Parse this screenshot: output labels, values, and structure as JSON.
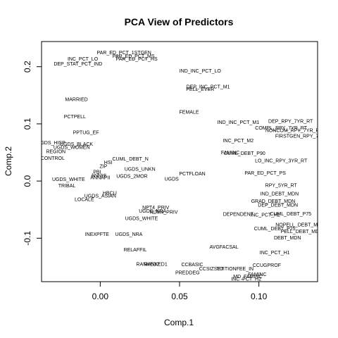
{
  "chart_data": {
    "type": "scatter",
    "title": "PCA View of Predictors",
    "xlabel": "Comp.1",
    "ylabel": "Comp.2",
    "xlim": [
      -0.037,
      0.137
    ],
    "ylim": [
      -0.176,
      0.244
    ],
    "xticks": [
      0.0,
      0.05,
      0.1
    ],
    "xtick_labels": [
      "0.00",
      "0.05",
      "0.10"
    ],
    "yticks": [
      -0.1,
      0.0,
      0.1,
      0.2
    ],
    "ytick_labels": [
      "-0.1",
      "0.0",
      "0.1",
      "0.2"
    ],
    "grid": false,
    "points": [
      {
        "label": "PAR_ED_PCT_1STGEN",
        "x": 0.015,
        "y": 0.225
      },
      {
        "label": "PAR_ED_PCT_MS",
        "x": 0.021,
        "y": 0.219
      },
      {
        "label": "PAR_ED_PCT_HS",
        "x": 0.023,
        "y": 0.214
      },
      {
        "label": "INC_PCT_LO",
        "x": -0.011,
        "y": 0.214
      },
      {
        "label": "DEP_STAT_PCT_IND",
        "x": -0.014,
        "y": 0.205
      },
      {
        "label": "IND_INC_PCT_LO",
        "x": 0.063,
        "y": 0.193
      },
      {
        "label": "DEP_INC_PCT_M1",
        "x": 0.068,
        "y": 0.165
      },
      {
        "label": "PELL_EVER",
        "x": 0.063,
        "y": 0.161
      },
      {
        "label": "MARRIED",
        "x": -0.015,
        "y": 0.143
      },
      {
        "label": "FEMALE",
        "x": 0.056,
        "y": 0.121
      },
      {
        "label": "PCTPELL",
        "x": -0.016,
        "y": 0.113
      },
      {
        "label": "IND_INC_PCT_M1",
        "x": 0.087,
        "y": 0.103
      },
      {
        "label": "DEP_RPY_7YR_RT",
        "x": 0.12,
        "y": 0.105
      },
      {
        "label": "COMPL_RPY_7YR_RT",
        "x": 0.114,
        "y": 0.093
      },
      {
        "label": "NONCOM_RPY_7YR_RT",
        "x": 0.122,
        "y": 0.089
      },
      {
        "label": "PPTUG_EF",
        "x": -0.009,
        "y": 0.085
      },
      {
        "label": "FIRSTGEN_RPY_7YR_RT",
        "x": 0.129,
        "y": 0.079
      },
      {
        "label": "INC_PCT_M2",
        "x": 0.087,
        "y": 0.071
      },
      {
        "label": "UGDS_HISP",
        "x": -0.031,
        "y": 0.067
      },
      {
        "label": "UGDS_BLACK",
        "x": -0.015,
        "y": 0.065
      },
      {
        "label": "UGDS_WOMEN",
        "x": -0.018,
        "y": 0.059
      },
      {
        "label": "REGION",
        "x": -0.028,
        "y": 0.052
      },
      {
        "label": "FAMINC",
        "x": 0.082,
        "y": 0.05
      },
      {
        "label": "CUML_DEBT_P90",
        "x": 0.091,
        "y": 0.049
      },
      {
        "label": "LO_INC_RPY_3YR_RT",
        "x": 0.114,
        "y": 0.036
      },
      {
        "label": "CONTROL",
        "x": -0.03,
        "y": 0.04
      },
      {
        "label": "CUML_DEBT_N",
        "x": 0.019,
        "y": 0.039
      },
      {
        "label": "HSI",
        "x": 0.005,
        "y": 0.033
      },
      {
        "label": "ZIP",
        "x": 0.002,
        "y": 0.026
      },
      {
        "label": "UGDS_UNKN",
        "x": 0.025,
        "y": 0.021
      },
      {
        "label": "PBI",
        "x": -0.002,
        "y": 0.016
      },
      {
        "label": "PCTFLOAN",
        "x": 0.058,
        "y": 0.013
      },
      {
        "label": "PAR_ED_PCT_PS",
        "x": 0.104,
        "y": 0.014
      },
      {
        "label": "ANNHI",
        "x": -0.001,
        "y": 0.01
      },
      {
        "label": "UGDS_2MOR",
        "x": 0.02,
        "y": 0.009
      },
      {
        "label": "UGDS",
        "x": 0.045,
        "y": 0.004
      },
      {
        "label": "UGDS_WHITE",
        "x": -0.02,
        "y": 0.003
      },
      {
        "label": "ANNAPII",
        "x": 0.0,
        "y": 0.006
      },
      {
        "label": "TRIBAL",
        "x": -0.021,
        "y": -0.008
      },
      {
        "label": "RPY_5YR_RT",
        "x": 0.114,
        "y": -0.007
      },
      {
        "label": "IND_DEBT_MDN",
        "x": 0.113,
        "y": -0.022
      },
      {
        "label": "HBCU",
        "x": 0.006,
        "y": -0.021
      },
      {
        "label": "UGDS_ASIAN",
        "x": 0.0,
        "y": -0.026
      },
      {
        "label": "LOCALE",
        "x": -0.01,
        "y": -0.032
      },
      {
        "label": "GRAD_DEBT_MDN",
        "x": 0.109,
        "y": -0.035
      },
      {
        "label": "DEP_DEBT_MDN",
        "x": 0.112,
        "y": -0.042
      },
      {
        "label": "NPT4_PRIV",
        "x": 0.035,
        "y": -0.046
      },
      {
        "label": "UGDS_NRA",
        "x": 0.033,
        "y": -0.052
      },
      {
        "label": "NUM4_PRIV",
        "x": 0.04,
        "y": -0.054
      },
      {
        "label": "DEPENDENT",
        "x": 0.087,
        "y": -0.058
      },
      {
        "label": "INC_PCT_H2",
        "x": 0.104,
        "y": -0.059
      },
      {
        "label": "CUML_DEBT_P75",
        "x": 0.12,
        "y": -0.057
      },
      {
        "label": "UGDS_WHITE",
        "x": 0.026,
        "y": -0.065
      },
      {
        "label": "NOPELL_DEBT_MDN",
        "x": 0.126,
        "y": -0.076
      },
      {
        "label": "CUML_DEBT_P25",
        "x": 0.11,
        "y": -0.083
      },
      {
        "label": "PELL_DEBT_MDN",
        "x": 0.127,
        "y": -0.088
      },
      {
        "label": "INEXPFTE",
        "x": -0.002,
        "y": -0.093
      },
      {
        "label": "UGDS_NRA",
        "x": 0.018,
        "y": -0.093
      },
      {
        "label": "DEBT_MDN",
        "x": 0.118,
        "y": -0.099
      },
      {
        "label": "AVGFACSAL",
        "x": 0.078,
        "y": -0.115
      },
      {
        "label": "RELAFFIL",
        "x": 0.022,
        "y": -0.12
      },
      {
        "label": "INC_PCT_H1",
        "x": 0.11,
        "y": -0.125
      },
      {
        "label": "RANKED1",
        "x": 0.035,
        "y": -0.145
      },
      {
        "label": "RANKED2",
        "x": 0.03,
        "y": -0.145
      },
      {
        "label": "CCBASIC",
        "x": 0.058,
        "y": -0.146
      },
      {
        "label": "CCUGPROF",
        "x": 0.105,
        "y": -0.147
      },
      {
        "label": "CCSIZSET",
        "x": 0.07,
        "y": -0.153
      },
      {
        "label": "TUITIONFEE_IN",
        "x": 0.085,
        "y": -0.153
      },
      {
        "label": "PREDDEG",
        "x": 0.055,
        "y": -0.16
      },
      {
        "label": "FAMINC",
        "x": 0.099,
        "y": -0.163
      },
      {
        "label": "MD_FAMINC",
        "x": 0.093,
        "y": -0.167
      },
      {
        "label": "INC_PCT_H2",
        "x": 0.092,
        "y": -0.171
      }
    ]
  }
}
